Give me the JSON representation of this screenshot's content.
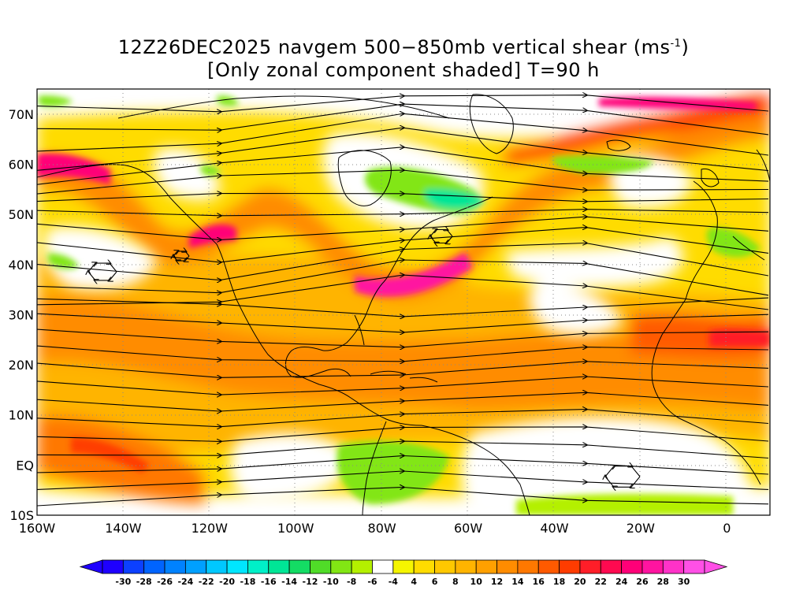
{
  "title": {
    "line1_prefix": "12Z26DEC2025 navgem 500−850mb vertical shear (ms",
    "line1_sup": "-1",
    "line1_suffix": ")",
    "line2": "[Only zonal component shaded] T=90 h"
  },
  "axes": {
    "lat_labels": [
      "70N",
      "60N",
      "50N",
      "40N",
      "30N",
      "20N",
      "10N",
      "EQ",
      "10S"
    ],
    "lat_values": [
      70,
      60,
      50,
      40,
      30,
      20,
      10,
      0,
      -10
    ],
    "lon_labels": [
      "160W",
      "140W",
      "120W",
      "100W",
      "80W",
      "60W",
      "40W",
      "20W",
      "0"
    ],
    "lon_values": [
      -160,
      -140,
      -120,
      -100,
      -80,
      -60,
      -40,
      -20,
      0
    ],
    "lon_range": [
      -160,
      10
    ],
    "lat_range": [
      -10,
      75
    ],
    "grid": "dotted"
  },
  "colorbar": {
    "labels": [
      "-30",
      "-28",
      "-26",
      "-24",
      "-22",
      "-20",
      "-18",
      "-16",
      "-14",
      "-12",
      "-10",
      "-8",
      "-6",
      "-4",
      "4",
      "6",
      "8",
      "10",
      "12",
      "14",
      "16",
      "18",
      "20",
      "22",
      "24",
      "26",
      "28",
      "30"
    ],
    "colors": [
      "#1e00ff",
      "#0c40ff",
      "#0064ff",
      "#0082ff",
      "#00a0ff",
      "#00c8ff",
      "#00e6ff",
      "#00f0c8",
      "#00e696",
      "#14dc64",
      "#50dc28",
      "#82e614",
      "#b4f000",
      "#ffffff",
      "#f5f500",
      "#ffdc00",
      "#ffc800",
      "#ffb400",
      "#ffa000",
      "#ff8c00",
      "#ff7800",
      "#ff5a00",
      "#ff3c00",
      "#ff1e28",
      "#ff0a50",
      "#ff0078",
      "#ff14a0",
      "#ff32c8",
      "#ff50e6"
    ]
  }
}
